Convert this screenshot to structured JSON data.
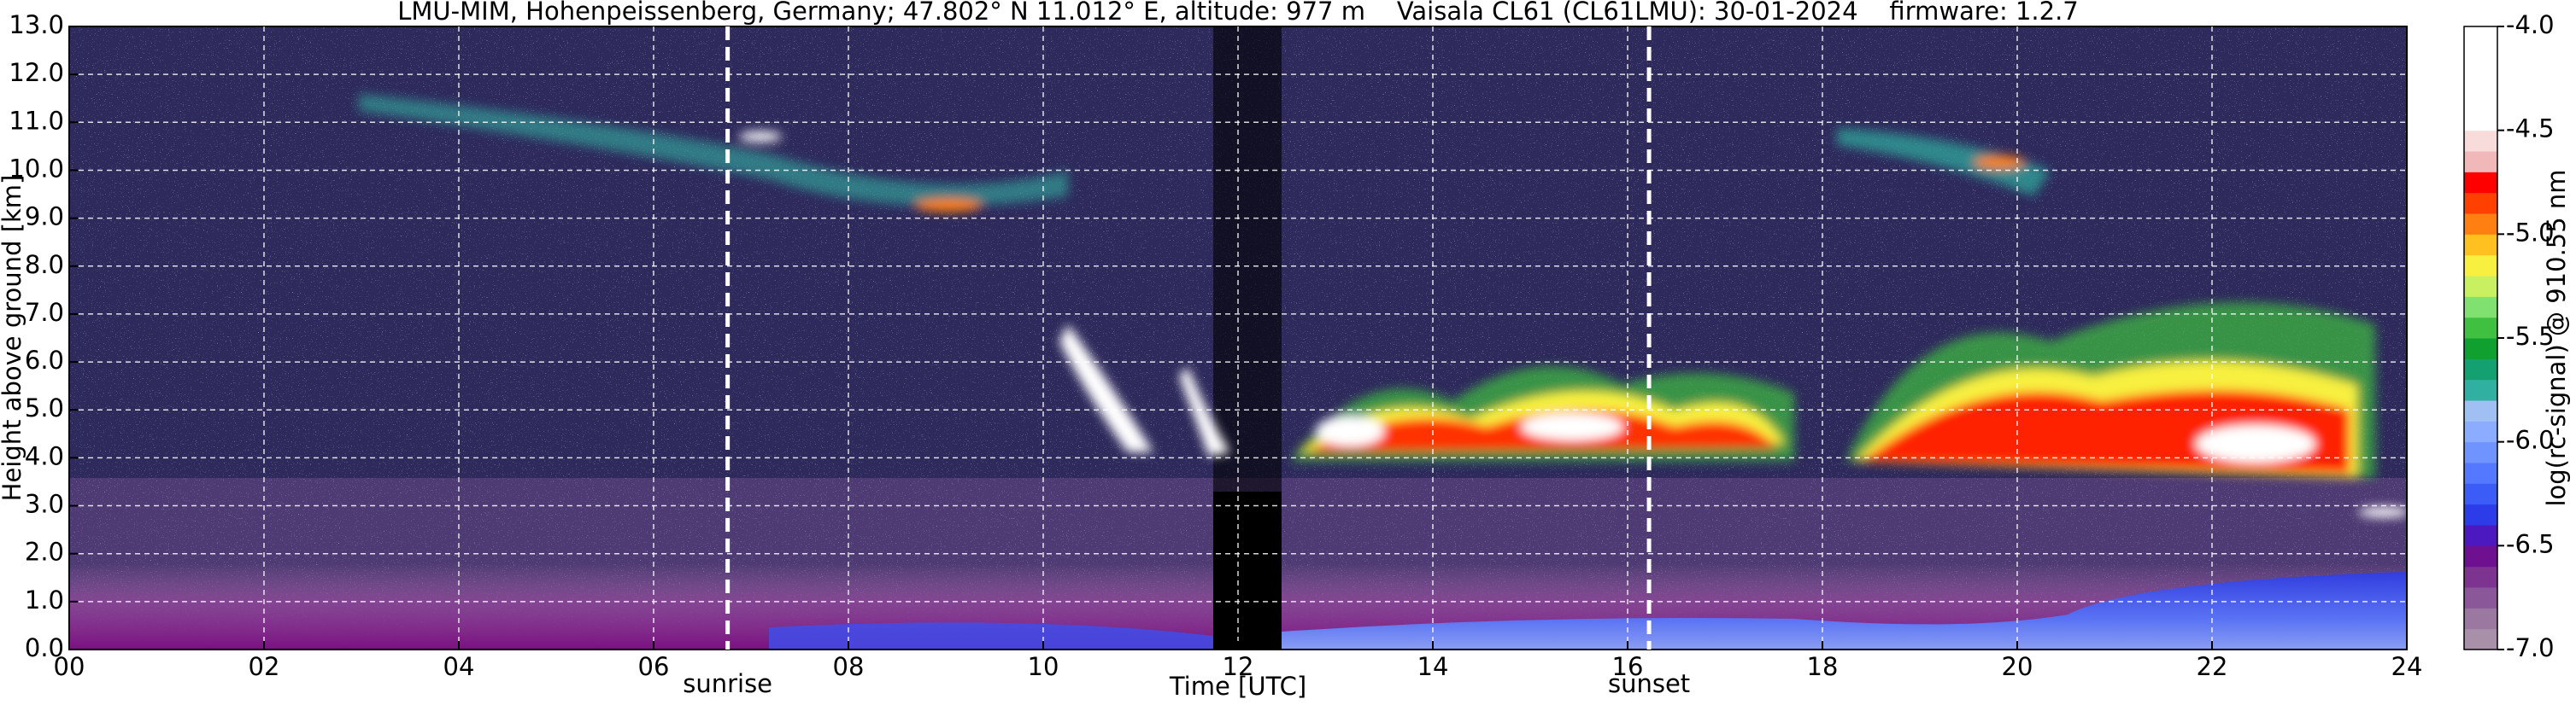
{
  "chart_data": {
    "type": "heatmap",
    "title": "LMU-MIM, Hohenpeissenberg, Germany; 47.802° N 11.012° E, altitude: 977 m    Vaisala CL61 (CL61LMU): 30-01-2024    firmware: 1.2.7",
    "x_label": "Time [UTC]",
    "y_label": "Height above ground [km]",
    "xlim": [
      0,
      24
    ],
    "xticks": [
      {
        "value": 0,
        "label": "00"
      },
      {
        "value": 2,
        "label": "02"
      },
      {
        "value": 4,
        "label": "04"
      },
      {
        "value": 6,
        "label": "06"
      },
      {
        "value": 8,
        "label": "08"
      },
      10,
      12,
      14,
      16,
      18,
      20,
      22,
      24
    ],
    "ylim": [
      0,
      13
    ],
    "yticks": [
      {
        "value": 0,
        "label": "0.0"
      },
      {
        "value": 1,
        "label": "1.0"
      },
      {
        "value": 2,
        "label": "2.0"
      },
      {
        "value": 3,
        "label": "3.0"
      },
      {
        "value": 4,
        "label": "4.0"
      },
      {
        "value": 5,
        "label": "5.0"
      },
      {
        "value": 6,
        "label": "6.0"
      },
      {
        "value": 7,
        "label": "7.0"
      },
      {
        "value": 8,
        "label": "8.0"
      },
      {
        "value": 9,
        "label": "9.0"
      },
      {
        "value": 10,
        "label": "10.0"
      },
      {
        "value": 11,
        "label": "11.0"
      },
      {
        "value": 12,
        "label": "12.0"
      },
      {
        "value": 13,
        "label": "13.0"
      }
    ],
    "grid": true,
    "annotations": [
      {
        "label": "sunrise",
        "x": 6.76
      },
      {
        "label": "sunset",
        "x": 16.22
      }
    ],
    "colorbar": {
      "label": "log(rc-signal) @ 910.55 nm",
      "lim": [
        -7,
        -4
      ],
      "ticks": [
        {
          "value": -7,
          "label": "-7.0"
        },
        -6.5,
        {
          "value": -6,
          "label": "-6.0"
        },
        -5.5,
        {
          "value": -5,
          "label": "-5.0"
        },
        -4.5,
        {
          "value": -4,
          "label": "-4.0"
        }
      ],
      "colors": [
        "#a890a8",
        "#9a78a0",
        "#8a5898",
        "#7c3490",
        "#6e1090",
        "#4c18c0",
        "#2c3ce8",
        "#3c5cf8",
        "#5478ff",
        "#7094ff",
        "#8cacff",
        "#a0c0f4",
        "#30b0a0",
        "#14a070",
        "#10a030",
        "#40c040",
        "#80e070",
        "#c8f060",
        "#f8f040",
        "#ffc020",
        "#ff8010",
        "#ff4000",
        "#ff0000",
        "#f0b8b8",
        "#f8dcdc",
        "#ffffff",
        "#ffffff",
        "#ffffff",
        "#ffffff",
        "#ffffff"
      ]
    }
  }
}
